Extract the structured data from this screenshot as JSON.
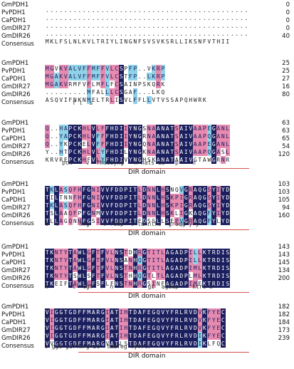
{
  "colors": {
    "identical": "#1b1f5e",
    "similar_pink": "#e68ab0",
    "similar_cyan": "#8fd3e8",
    "domain_line": "#d9534f"
  },
  "blocks": [
    {
      "rows": [
        {
          "name": "GmPDH1",
          "seq": "............................................",
          "end": "0"
        },
        {
          "name": "PvPDH1",
          "seq": "............................................",
          "end": "0"
        },
        {
          "name": "CaPDH1",
          "seq": "............................................",
          "end": "0"
        },
        {
          "name": "GmDIR27",
          "seq": "............................................",
          "end": "0"
        },
        {
          "name": "GmDIR26",
          "seq": "MKLFSLNLKVLTRIYLINGNFSVSVKSRLLIKSNFVTHII",
          "end": "40"
        }
      ],
      "consensus": "",
      "domain": ""
    },
    {
      "rows": [
        {
          "name": "GmPDH1",
          "seq": "MGVKVALVFFMFFVLCSPFP..VKRP",
          "end": "25"
        },
        {
          "name": "PvPDH1",
          "seq": "MGAKVALVFFMFFVLCSTFP..LKRP",
          "end": "25"
        },
        {
          "name": "CaPDH1",
          "seq": "MGAKVRMFVFLMFLFCSAINPSKQRK",
          "end": "27"
        },
        {
          "name": "GmDIR27",
          "seq": ".........MFALLLCSGAF...LKQ",
          "end": "16"
        },
        {
          "name": "GmDIR26",
          "seq": "ASQVIFNKNMELTRLISVLFFLLVTVSSAPQHWRK",
          "end": "80"
        }
      ],
      "consensus": "        f l  s",
      "domain": ""
    },
    {
      "rows": [
        {
          "name": "GmPDH1",
          "seq": "Q..HAPCKHLVLFFHDIIYNGSNAANATSAIVAAPEGANL",
          "end": "63"
        },
        {
          "name": "PvPDH1",
          "seq": "Q..YAPCKHLVFFFHDIIYNGRNAANATSAIVAAPQGANL",
          "end": "63"
        },
        {
          "name": "CaPDH1",
          "seq": "Q..YKPCKELVFFFHDIIYNGQNAANATSAIVAAPEGANL",
          "end": "65"
        },
        {
          "name": "GmDIR27",
          "seq": "Y..HTPCKHLVLYFHDILYNGKNAANATSAIVAAPQGASL",
          "end": "54"
        },
        {
          "name": "GmDIR26",
          "seq": "KRVREPCKHFVLYFHDIVYNGHSKANATAAIVGTAWGRNR",
          "end": "120"
        }
      ],
      "consensus": "     pck    v  fhdiiyng   n nats ai   p    n",
      "domain": "DIR domain"
    },
    {
      "rows": [
        {
          "name": "GmPDH1",
          "seq": "TKLASQFHFGNIVVFDDPITLDNNLHSNQVGRAQGSYIYD",
          "end": "103"
        },
        {
          "name": "PvPDH1",
          "seq": "TILTNNFHFGNIVVFDDPITLDNNLHSKPIGRAQGSYIYD",
          "end": "103"
        },
        {
          "name": "CaPDH1",
          "seq": "TKLASQFHFGNIVVFDDPITLDNNLHSKPIGRAQGSYIYD",
          "end": "105"
        },
        {
          "name": "GmDIR27",
          "seq": "TSLAAQFPFGNMVVFDDPITLDNNLHSKLIGKAQGFYIYD",
          "end": "94"
        },
        {
          "name": "GmDIR26",
          "seq": "TLLAGQNHFGSIVVFDDPITEDSSLLSEPVGRAQGFYLYD",
          "end": "160"
        }
      ],
      "consensus": "t  l      hfg    v fddp  t ldnnlhs  graqg y y",
      "domain": "DIR domain"
    },
    {
      "rows": [
        {
          "name": "GmPDH1",
          "seq": "TKNTYTAWLGFTFVLNSTDHRGTITLAGADPILLKTRDIS",
          "end": "143"
        },
        {
          "name": "PvPDH1",
          "seq": "TKNTYTAWLGFTFVLNSANHQGTITLAGADPILLKTRDIS",
          "end": "143"
        },
        {
          "name": "CaPDH1",
          "seq": "TKNTYTAWLGFTFVLNSTNHRGTITLAGADPIMLKTRDIS",
          "end": "145"
        },
        {
          "name": "GmDIR27",
          "seq": "TKNTYTSWLSFTFVLNSTHHQGTLTLAGADPLMLKTRDIS",
          "end": "134"
        },
        {
          "name": "GmDIR26",
          "seq": "TKEIFTAWLGFSFLFNSTNHRGSINFAGADPIMEKTRDIS",
          "end": "200"
        }
      ],
      "consensus": "k       t  lgf  f  n          gi  agadp    ktrd s",
      "domain": "DIR domain"
    },
    {
      "rows": [
        {
          "name": "GmPDH1",
          "seq": "VIGGTGDFFMARGIATIHTDAFEGQVYFRLRVDVKFYEC",
          "end": "182"
        },
        {
          "name": "PvPDH1",
          "seq": "VIGGTGDFFMARGIATIHTDAFEGQVYFRLRVDVKFYEC",
          "end": "182"
        },
        {
          "name": "CaPDH1",
          "seq": "VIGGTGDFFMARGIATIHTDAFEGQVYFRLRVDVKFYEC",
          "end": "184"
        },
        {
          "name": "GmDIR27",
          "seq": "VIGGTGDFFMARGIATIHTDAFEGQVYFRLRVDIKFYEC",
          "end": "173"
        },
        {
          "name": "GmDIR26",
          "seq": "VVGGTGDFFMARGVATLSTDAFEGQVYFRLRVDIKLFQC",
          "end": "239"
        }
      ],
      "consensus": "v ggt gdffmrg at  tdafeg vyfrlr",
      "domain": "DIR domain"
    }
  ],
  "labels": {
    "consensus": "Consensus"
  }
}
